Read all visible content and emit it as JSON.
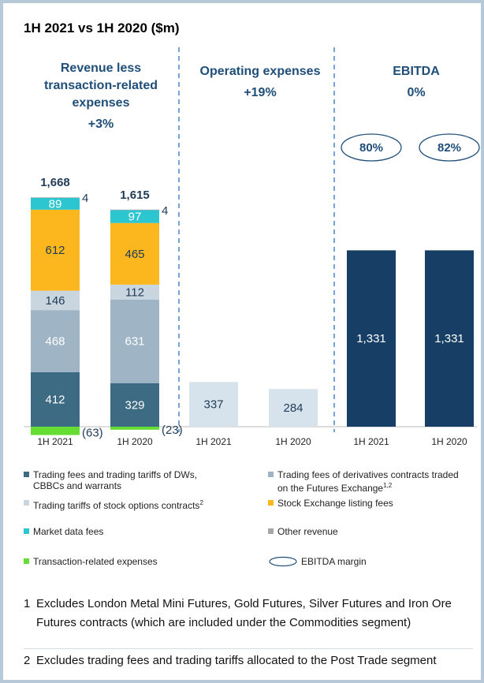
{
  "title": "1H 2021 vs 1H 2020 ($m)",
  "chart_data": [
    {
      "type": "stacked_bar",
      "title": "Revenue less transaction-related expenses",
      "subtitle": "+3%",
      "categories": [
        "1H 2021",
        "1H 2020"
      ],
      "series": [
        {
          "name": "Trading fees and trading tariffs of DWs, CBBCs and warrants",
          "color": "#3d6b84",
          "values": [
            412,
            329
          ]
        },
        {
          "name": "Trading fees of derivatives contracts traded on the Futures Exchange",
          "footnote_ref": "1,2",
          "color": "#9fb5c6",
          "values": [
            468,
            631
          ]
        },
        {
          "name": "Trading tariffs of stock options contracts",
          "footnote_ref": "2",
          "color": "#c9d5df",
          "values": [
            146,
            112
          ]
        },
        {
          "name": "Stock Exchange listing fees",
          "color": "#fbb71d",
          "values": [
            612,
            465
          ]
        },
        {
          "name": "Market data fees",
          "color": "#2cc6d1",
          "values": [
            89,
            97
          ]
        },
        {
          "name": "Other revenue",
          "color": "#a6a6a6",
          "values": [
            4,
            4
          ]
        },
        {
          "name": "Transaction-related expenses",
          "color": "#66dd33",
          "values": [
            -63,
            -23
          ],
          "value_labels": [
            "(63)",
            "(23)"
          ]
        }
      ],
      "totals": {
        "values": [
          1668,
          1615
        ],
        "value_labels": [
          "1,668",
          "1,615"
        ]
      }
    },
    {
      "type": "bar",
      "title": "Operating expenses",
      "subtitle": "+19%",
      "categories": [
        "1H 2021",
        "1H 2020"
      ],
      "color": "#d6e3ed",
      "values": [
        337,
        284
      ]
    },
    {
      "type": "bar",
      "title": "EBITDA",
      "subtitle": "0%",
      "categories": [
        "1H 2021",
        "1H 2020"
      ],
      "color": "#173f66",
      "values": [
        1331,
        1331
      ],
      "value_labels": [
        "1,331",
        "1,331"
      ],
      "margin": {
        "name": "EBITDA margin",
        "values": [
          80,
          82
        ],
        "value_labels": [
          "80%",
          "82%"
        ]
      }
    }
  ],
  "footnotes": [
    {
      "number": "1",
      "text": "Excludes London Metal Mini Futures, Gold Futures, Silver Futures and Iron Ore Futures contracts (which are included under the Commodities segment)"
    },
    {
      "number": "2",
      "text": "Excludes trading fees and trading tariffs allocated to the Post Trade segment"
    }
  ]
}
